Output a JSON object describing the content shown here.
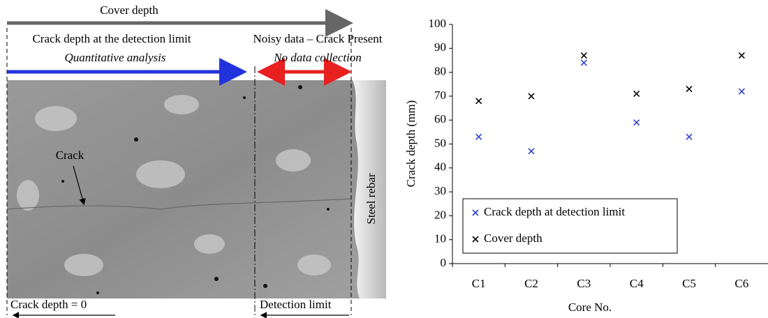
{
  "annotations": {
    "cover_depth": "Cover depth",
    "crack_depth_limit": "Crack depth at the detection limit",
    "noisy_data": "Noisy data – Crack Present",
    "quantitative": "Quantitative analysis",
    "no_data": "No data collection",
    "crack": "Crack",
    "steel_rebar": "Steel rebar",
    "crack_zero": "Crack depth = 0",
    "detection_limit": "Detection limit"
  },
  "chart_data": {
    "type": "scatter",
    "x_label": "Core No.",
    "y_label": "Crack depth (mm)",
    "categories": [
      "C1",
      "C2",
      "C3",
      "C4",
      "C5",
      "C6"
    ],
    "series": [
      {
        "name": "Crack depth at detection limit",
        "color": "#2f3fd0",
        "values": [
          53,
          47,
          84,
          59,
          53,
          72
        ]
      },
      {
        "name": "Cover depth",
        "color": "#000000",
        "values": [
          68,
          70,
          87,
          71,
          73,
          87
        ]
      }
    ],
    "ylim": [
      0,
      100
    ],
    "yticks": [
      0,
      10,
      20,
      30,
      40,
      50,
      60,
      70,
      80,
      90,
      100
    ],
    "grid": false,
    "marker": "x",
    "legend": "lower-left"
  }
}
